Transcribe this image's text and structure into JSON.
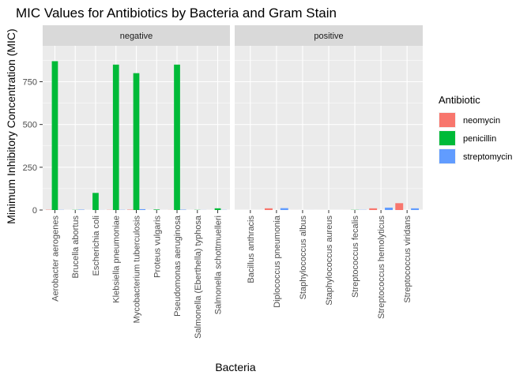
{
  "chart_data": {
    "type": "bar",
    "title": "MIC Values for Antibiotics by Bacteria and Gram Stain",
    "xlabel": "Bacteria",
    "ylabel": "Minimum Inhibitory Concentration (MIC)",
    "ylim": [
      0,
      960
    ],
    "yticks": [
      0,
      250,
      500,
      750
    ],
    "grid": true,
    "legend": {
      "title": "Antibiotic",
      "position": "right"
    },
    "series": [
      {
        "name": "neomycin",
        "color": "#F8766D"
      },
      {
        "name": "penicillin",
        "color": "#00BA38"
      },
      {
        "name": "streptomycin",
        "color": "#619CFF"
      }
    ],
    "facets": [
      {
        "label": "negative",
        "categories": [
          "Aerobacter aerogenes",
          "Brucella abortus",
          "Escherichia coli",
          "Klebsiella pneumoniae",
          "Mycobacterium tuberculosis",
          "Proteus vulgaris",
          "Pseudomonas aeruginosa",
          "Salmonella (Eberthella) typhosa",
          "Salmonella schottmuelleri"
        ],
        "values": {
          "neomycin": [
            1.6,
            0.02,
            0.1,
            1,
            2,
            0.1,
            0.4,
            0.008,
            0.09
          ],
          "penicillin": [
            870,
            1,
            100,
            850,
            800,
            3,
            850,
            1,
            10
          ],
          "streptomycin": [
            1,
            2,
            0.4,
            1.2,
            5,
            0.1,
            2,
            0.4,
            0.8
          ]
        }
      },
      {
        "label": "positive",
        "categories": [
          "Bacillus anthracis",
          "Diplococcus pneumonia",
          "Staphylococcus albus",
          "Staphylococcus aureus",
          "Streptococcus fecalis",
          "Streptococcus hemolyticus",
          "Streptococcus viridans"
        ],
        "values": {
          "neomycin": [
            0.007,
            10,
            0.1,
            0.03,
            0.1,
            10,
            40
          ],
          "penicillin": [
            0.001,
            0.005,
            0.007,
            0.03,
            1,
            0.001,
            0.005
          ],
          "streptomycin": [
            0.01,
            11,
            0.1,
            0.03,
            1,
            14,
            10
          ]
        }
      }
    ]
  }
}
